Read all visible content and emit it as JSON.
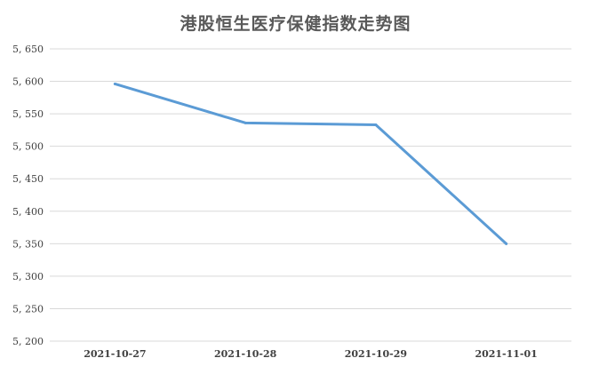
{
  "chart_data": {
    "type": "line",
    "title": "港股恒生医疗保健指数走势图",
    "xlabel": "",
    "ylabel": "",
    "categories": [
      "2021-10-27",
      "2021-10-28",
      "2021-10-29",
      "2021-11-01"
    ],
    "series": [
      {
        "values": [
          5596,
          5536,
          5533,
          5350
        ],
        "color": "#5b9bd5"
      }
    ],
    "ylim": [
      5200,
      5650
    ],
    "yticks": [
      5200,
      5250,
      5300,
      5350,
      5400,
      5450,
      5500,
      5550,
      5600,
      5650
    ],
    "ytick_labels": [
      "5, 200",
      "5, 250",
      "5, 300",
      "5, 350",
      "5, 400",
      "5, 450",
      "5, 500",
      "5, 550",
      "5, 600",
      "5, 650"
    ],
    "grid": true,
    "legend": "none",
    "colors": {
      "grid": "#d9d9d9",
      "title": "#595959",
      "axis_text": "#404040"
    }
  }
}
